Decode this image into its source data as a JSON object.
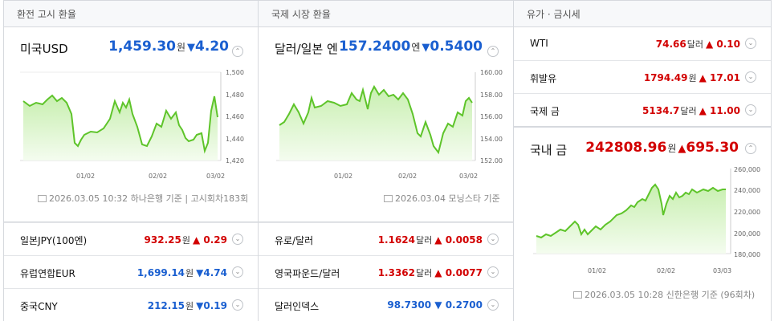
{
  "panels": {
    "exchange": {
      "title": "환전 고시 환율",
      "main": {
        "name": "미국USD",
        "value": "1,459.30",
        "unit": "원",
        "change": "4.20",
        "dir": "down"
      },
      "chart": {
        "yticks": [
          "1,500",
          "1,480",
          "1,460",
          "1,440",
          "1,420"
        ],
        "xticks": [
          "01/02",
          "02/02",
          "03/02"
        ]
      },
      "source": "2026.03.05 10:32 하나은행 기준",
      "source_extra": "고시회차183회",
      "rows": [
        {
          "name": "일본JPY(100엔)",
          "value": "932.25",
          "unit": "원",
          "change": "0.29",
          "dir": "up"
        },
        {
          "name": "유럽연합EUR",
          "value": "1,699.14",
          "unit": "원",
          "change": "4.74",
          "dir": "down"
        },
        {
          "name": "중국CNY",
          "value": "212.15",
          "unit": "원",
          "change": "0.19",
          "dir": "down"
        }
      ]
    },
    "intl": {
      "title": "국제 시장 환율",
      "main": {
        "name": "달러/일본 엔",
        "value": "157.2400",
        "unit": "엔",
        "change": "0.5400",
        "dir": "down"
      },
      "chart": {
        "yticks": [
          "160.00",
          "158.00",
          "156.00",
          "154.00",
          "152.00"
        ],
        "xticks": [
          "01/02",
          "02/02",
          "03/02"
        ]
      },
      "source": "2026.03.04 모닝스타 기준",
      "rows": [
        {
          "name": "유로/달러",
          "value": "1.1624",
          "unit": "달러",
          "change": "0.0058",
          "dir": "up"
        },
        {
          "name": "영국파운드/달러",
          "value": "1.3362",
          "unit": "달러",
          "change": "0.0077",
          "dir": "up"
        },
        {
          "name": "달러인덱스",
          "value": "98.7300",
          "unit": "",
          "change": "0.2700",
          "dir": "down"
        }
      ]
    },
    "oil": {
      "title": "유가 · 금시세",
      "rows": [
        {
          "name": "WTI",
          "value": "74.66",
          "unit": "달러",
          "change": "0.10",
          "dir": "up"
        },
        {
          "name": "휘발유",
          "value": "1794.49",
          "unit": "원",
          "change": "17.01",
          "dir": "up"
        },
        {
          "name": "국제 금",
          "value": "5134.7",
          "unit": "달러",
          "change": "11.00",
          "dir": "up"
        }
      ],
      "main": {
        "name": "국내 금",
        "value": "242808.96",
        "unit": "원",
        "change": "695.30",
        "dir": "up"
      },
      "chart": {
        "yticks": [
          "260,000",
          "240,000",
          "220,000",
          "200,000",
          "180,000"
        ],
        "xticks": [
          "01/02",
          "02/02",
          "03/03"
        ]
      },
      "source": "2026.03.05 10:28 신한은행 기준 (96회차)"
    }
  },
  "icons": {
    "up": "▲",
    "down": "▼",
    "chevron": "chevron-down-icon",
    "document": "document-icon"
  },
  "colors": {
    "up": "#d20000",
    "down": "#1a5fd0",
    "line": "#5ec42a"
  }
}
